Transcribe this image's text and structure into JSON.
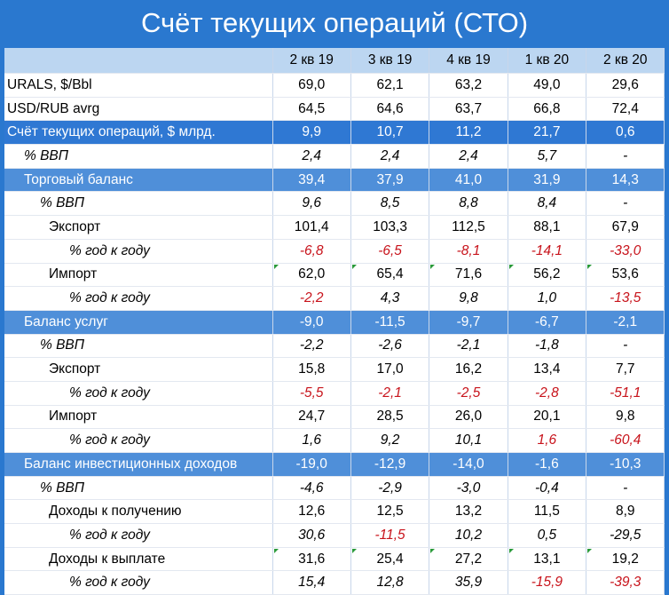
{
  "title": "Счёт текущих операций (СТО)",
  "colors": {
    "frame": "#2a78cf",
    "header_row": "#bcd6f1",
    "band": "#2f78d3",
    "band_light": "#4f8fd9",
    "negative": "#c8141c"
  },
  "columns": [
    "2 кв 19",
    "3 кв 19",
    "4 кв 19",
    "1 кв 20",
    "2 кв 20"
  ],
  "rows": [
    {
      "label": "URALS, $/Bbl",
      "values": [
        "69,0",
        "62,1",
        "63,2",
        "49,0",
        "29,6"
      ]
    },
    {
      "label": "USD/RUB avrg",
      "values": [
        "64,5",
        "64,6",
        "63,7",
        "66,8",
        "72,4"
      ]
    },
    {
      "label": "Счёт текущих операций, $ млрд.",
      "values": [
        "9,9",
        "10,7",
        "11,2",
        "21,7",
        "0,6"
      ]
    },
    {
      "label": "% ВВП",
      "values": [
        "2,4",
        "2,4",
        "2,4",
        "5,7",
        "-"
      ]
    },
    {
      "label": "Торговый баланс",
      "values": [
        "39,4",
        "37,9",
        "41,0",
        "31,9",
        "14,3"
      ]
    },
    {
      "label": "% ВВП",
      "values": [
        "9,6",
        "8,5",
        "8,8",
        "8,4",
        "-"
      ]
    },
    {
      "label": "Экспорт",
      "values": [
        "101,4",
        "103,3",
        "112,5",
        "88,1",
        "67,9"
      ]
    },
    {
      "label": "% год к году",
      "values": [
        "-6,8",
        "-6,5",
        "-8,1",
        "-14,1",
        "-33,0"
      ]
    },
    {
      "label": "Импорт",
      "values": [
        "62,0",
        "65,4",
        "71,6",
        "56,2",
        "53,6"
      ]
    },
    {
      "label": "% год к году",
      "values": [
        "-2,2",
        "4,3",
        "9,8",
        "1,0",
        "-13,5"
      ]
    },
    {
      "label": "Баланс услуг",
      "values": [
        "-9,0",
        "-11,5",
        "-9,7",
        "-6,7",
        "-2,1"
      ]
    },
    {
      "label": "% ВВП",
      "values": [
        "-2,2",
        "-2,6",
        "-2,1",
        "-1,8",
        "-"
      ]
    },
    {
      "label": "Экспорт",
      "values": [
        "15,8",
        "17,0",
        "16,2",
        "13,4",
        "7,7"
      ]
    },
    {
      "label": "% год к году",
      "values": [
        "-5,5",
        "-2,1",
        "-2,5",
        "-2,8",
        "-51,1"
      ]
    },
    {
      "label": "Импорт",
      "values": [
        "24,7",
        "28,5",
        "26,0",
        "20,1",
        "9,8"
      ]
    },
    {
      "label": "% год к году",
      "values": [
        "1,6",
        "9,2",
        "10,1",
        "1,6",
        "-60,4"
      ]
    },
    {
      "label": "Баланс инвестиционных доходов",
      "values": [
        "-19,0",
        "-12,9",
        "-14,0",
        "-1,6",
        "-10,3"
      ]
    },
    {
      "label": "% ВВП",
      "values": [
        "-4,6",
        "-2,9",
        "-3,0",
        "-0,4",
        "-"
      ]
    },
    {
      "label": "Доходы к получению",
      "values": [
        "12,6",
        "12,5",
        "13,2",
        "11,5",
        "8,9"
      ]
    },
    {
      "label": "% год к году",
      "values": [
        "30,6",
        "-11,5",
        "10,2",
        "0,5",
        "-29,5"
      ]
    },
    {
      "label": "Доходы к выплате",
      "values": [
        "31,6",
        "25,4",
        "27,2",
        "13,1",
        "19,2"
      ]
    },
    {
      "label": "% год к году",
      "values": [
        "15,4",
        "12,8",
        "35,9",
        "-15,9",
        "-39,3"
      ]
    }
  ]
}
